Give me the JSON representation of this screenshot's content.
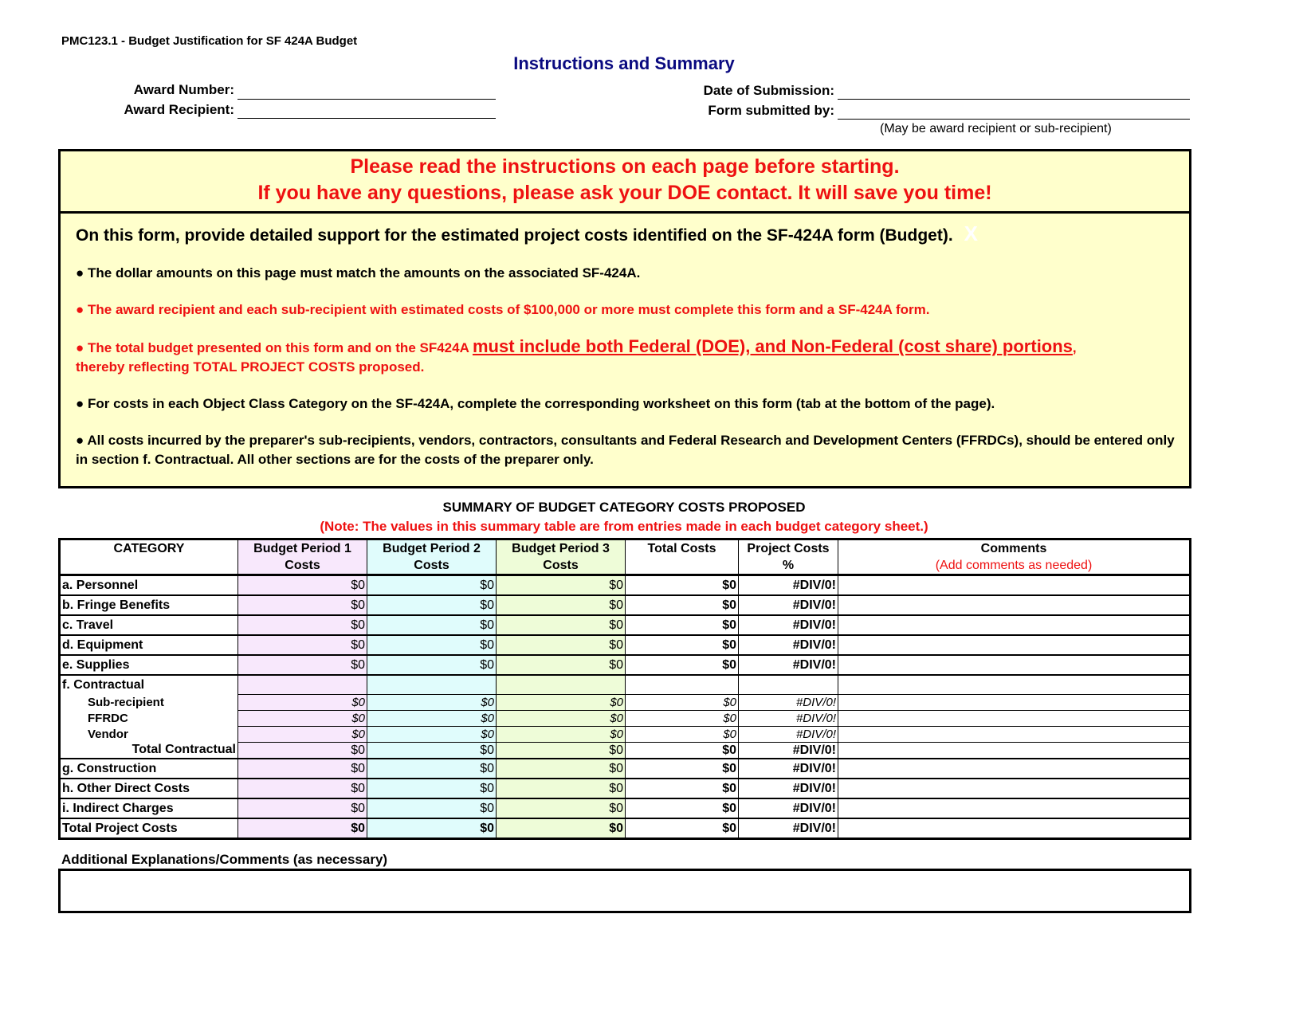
{
  "doc_id": "PMC123.1 - Budget Justification for SF 424A Budget",
  "title": "Instructions and Summary",
  "fields": {
    "award_number": "Award Number:",
    "award_recipient": "Award Recipient:",
    "date_of_submission": "Date of Submission:",
    "form_submitted_by": "Form submitted by:",
    "submitted_by_note": "(May be award recipient or sub-recipient)"
  },
  "instructions": {
    "head1": "Please read the instructions on each page before starting.",
    "head2": "If you have any questions, please ask your DOE contact.  It will save you time!",
    "lead": "On this form, provide detailed support for the estimated project costs identified on the SF-424A form (Budget).",
    "close": "X",
    "b1": "●  The dollar amounts on this page must match the amounts on the associated SF-424A.",
    "b2": "● The award recipient and each sub-recipient with estimated costs of $100,000 or more must complete this form and a SF-424A form.",
    "b3a": "●   The total budget presented on this form and on the SF424A ",
    "b3b": "must include both Federal (DOE), and Non-Federal (cost share) portions",
    "b3c": ",",
    "b3d": "thereby reflecting TOTAL PROJECT COSTS proposed.",
    "b4": "●  For costs in each Object Class Category on the SF-424A, complete the corresponding worksheet on this form (tab at the bottom of the page).",
    "b5": "●  All costs incurred by the preparer's sub-recipients, vendors, contractors, consultants and Federal Research and Development Centers (FFRDCs), should be entered only in section f. Contractual.  All other sections are for the costs of the preparer only."
  },
  "summary": {
    "title": "SUMMARY OF BUDGET CATEGORY COSTS PROPOSED",
    "note": "(Note: The values in this summary table are from entries made in each budget category sheet.)",
    "headers": {
      "category": "CATEGORY",
      "p1": "Budget Period 1",
      "p2": "Budget Period 2",
      "p3": "Budget Period 3",
      "costs": "Costs",
      "total": "Total Costs",
      "pct": "Project Costs",
      "pct2": "%",
      "comments": "Comments",
      "comments_note": "(Add comments as needed)"
    },
    "rows": {
      "a": {
        "label": "a. Personnel",
        "p1": "$0",
        "p2": "$0",
        "p3": "$0",
        "total": "$0",
        "pct": "#DIV/0!"
      },
      "b": {
        "label": "b. Fringe Benefits",
        "p1": "$0",
        "p2": "$0",
        "p3": "$0",
        "total": "$0",
        "pct": "#DIV/0!"
      },
      "c": {
        "label": "c. Travel",
        "p1": "$0",
        "p2": "$0",
        "p3": "$0",
        "total": "$0",
        "pct": "#DIV/0!"
      },
      "d": {
        "label": "d. Equipment",
        "p1": "$0",
        "p2": "$0",
        "p3": "$0",
        "total": "$0",
        "pct": "#DIV/0!"
      },
      "e": {
        "label": "e. Supplies",
        "p1": "$0",
        "p2": "$0",
        "p3": "$0",
        "total": "$0",
        "pct": "#DIV/0!"
      },
      "f": {
        "label": "f. Contractual"
      },
      "f1": {
        "label": "Sub-recipient",
        "p1": "$0",
        "p2": "$0",
        "p3": "$0",
        "total": "$0",
        "pct": "#DIV/0!"
      },
      "f2": {
        "label": "FFRDC",
        "p1": "$0",
        "p2": "$0",
        "p3": "$0",
        "total": "$0",
        "pct": "#DIV/0!"
      },
      "f3": {
        "label": "Vendor",
        "p1": "$0",
        "p2": "$0",
        "p3": "$0",
        "total": "$0",
        "pct": "#DIV/0!"
      },
      "ft": {
        "label": "Total Contractual",
        "p1": "$0",
        "p2": "$0",
        "p3": "$0",
        "total": "$0",
        "pct": "#DIV/0!"
      },
      "g": {
        "label": "g. Construction",
        "p1": "$0",
        "p2": "$0",
        "p3": "$0",
        "total": "$0",
        "pct": "#DIV/0!"
      },
      "h": {
        "label": "h. Other Direct Costs",
        "p1": "$0",
        "p2": "$0",
        "p3": "$0",
        "total": "$0",
        "pct": "#DIV/0!"
      },
      "i": {
        "label": "i. Indirect Charges",
        "p1": "$0",
        "p2": "$0",
        "p3": "$0",
        "total": "$0",
        "pct": "#DIV/0!"
      },
      "tot": {
        "label": "Total Project Costs",
        "p1": "$0",
        "p2": "$0",
        "p3": "$0",
        "total": "$0",
        "pct": "#DIV/0!"
      }
    }
  },
  "additional": "Additional Explanations/Comments (as necessary)",
  "colors": {
    "instructions_bg": "#ffffcc",
    "period1": "#f8e8fc",
    "period2": "#e0fcfc",
    "period3": "#eefcd8",
    "warning": "#ee1111",
    "title": "#0a0a80"
  }
}
